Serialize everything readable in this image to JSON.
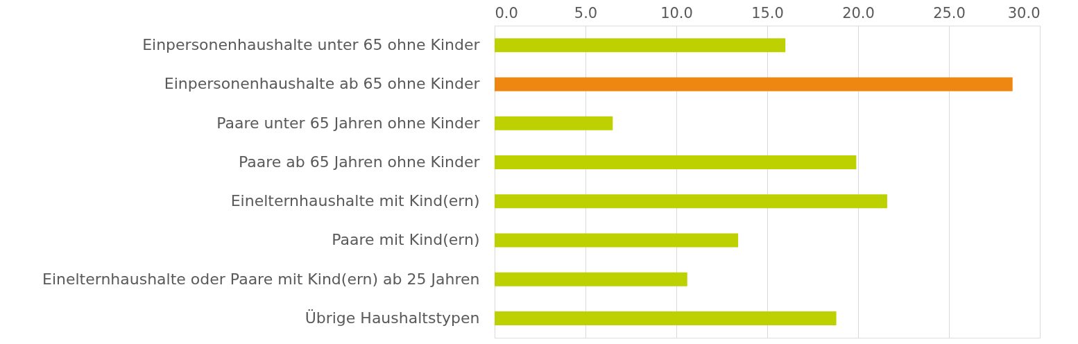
{
  "chart_data": {
    "type": "bar",
    "orientation": "horizontal",
    "categories": [
      "Einpersonenhaushalte unter 65 ohne Kinder",
      "Einpersonenhaushalte ab 65 ohne Kinder",
      "Paare unter 65 Jahren ohne Kinder",
      "Paare ab 65 Jahren ohne Kinder",
      "Einelternhaushalte mit Kind(ern)",
      "Paare mit Kind(ern)",
      "Einelternhaushalte oder Paare mit Kind(ern) ab 25 Jahren",
      "Übrige Haushaltstypen"
    ],
    "values": [
      16.0,
      28.5,
      6.5,
      19.9,
      21.6,
      13.4,
      10.6,
      18.8
    ],
    "colors": [
      "#bdd100",
      "#ee8711",
      "#bdd100",
      "#bdd100",
      "#bdd100",
      "#bdd100",
      "#bdd100",
      "#bdd100"
    ],
    "xlim": [
      0,
      30
    ],
    "xticks": [
      {
        "value": 0,
        "label": "0.0"
      },
      {
        "value": 5,
        "label": "5.0"
      },
      {
        "value": 10,
        "label": "10.0"
      },
      {
        "value": 15,
        "label": "15.0"
      },
      {
        "value": 20,
        "label": "20.0"
      },
      {
        "value": 25,
        "label": "25.0"
      },
      {
        "value": 30,
        "label": "30.0"
      }
    ],
    "grid": "x"
  }
}
